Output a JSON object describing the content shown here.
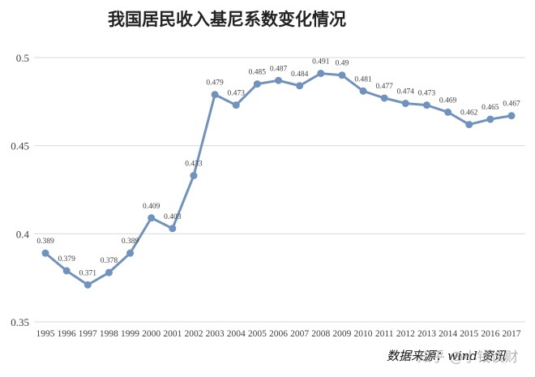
{
  "title": "我国居民收入基尼系数变化情况",
  "source": "数据来源：wind 资讯",
  "watermark": "知乎 @小钱谈财",
  "colors": {
    "line": "#6F92BF",
    "grid": "#D9D9D9",
    "label": "#404040"
  },
  "chart_data": {
    "type": "line",
    "title": "我国居民收入基尼系数变化情况",
    "xlabel": "",
    "ylabel": "",
    "categories": [
      "1995",
      "1996",
      "1997",
      "1998",
      "1999",
      "2000",
      "2001",
      "2002",
      "2003",
      "2004",
      "2005",
      "2006",
      "2007",
      "2008",
      "2009",
      "2010",
      "2011",
      "2012",
      "2013",
      "2014",
      "2015",
      "2016",
      "2017"
    ],
    "series": [
      {
        "values": [
          0.389,
          0.379,
          0.371,
          0.378,
          0.389,
          0.409,
          0.403,
          0.433,
          0.479,
          0.473,
          0.485,
          0.487,
          0.484,
          0.491,
          0.49,
          0.481,
          0.477,
          0.474,
          0.473,
          0.469,
          0.462,
          0.465,
          0.467
        ],
        "labels": [
          "0.389",
          "0.379",
          "0.371",
          "0.378",
          "0.389",
          "0.409",
          "0.403",
          "0.433",
          "0.479",
          "0.473",
          "0.485",
          "0.487",
          "0.484",
          "0.491",
          "0.49",
          "0.481",
          "0.477",
          "0.474",
          "0.473",
          "0.469",
          "0.462",
          "0.465",
          "0.467"
        ]
      }
    ],
    "yticks": [
      "0.35",
      "0.4",
      "0.45",
      "0.5"
    ],
    "ylim": [
      0.35,
      0.5
    ],
    "grid": true,
    "legend": "none",
    "marker": "circle"
  }
}
